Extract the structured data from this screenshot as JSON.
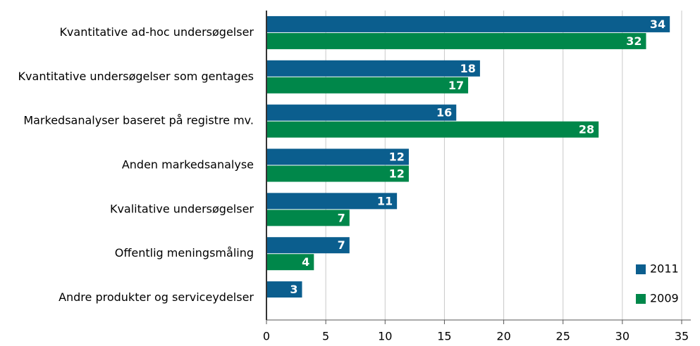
{
  "chart_data": {
    "type": "bar",
    "orientation": "horizontal",
    "categories": [
      "Kvantitative ad-hoc undersøgelser",
      "Kvantitative undersøgelser som gentages",
      "Markedsanalyser baseret på registre mv.",
      "Anden markedsanalyse",
      "Kvalitative undersøgelser",
      "Offentlig meningsmåling",
      "Andre produkter og serviceydelser"
    ],
    "series": [
      {
        "name": "2011",
        "color": "#0b5e8e",
        "values": [
          34,
          18,
          16,
          12,
          11,
          7,
          3
        ]
      },
      {
        "name": "2009",
        "color": "#00874a",
        "values": [
          32,
          17,
          28,
          12,
          7,
          4,
          null
        ]
      }
    ],
    "xlim": [
      0,
      35
    ],
    "xticks": [
      0,
      5,
      10,
      15,
      20,
      25,
      30,
      35
    ],
    "grid": true,
    "legend": "lower right"
  }
}
